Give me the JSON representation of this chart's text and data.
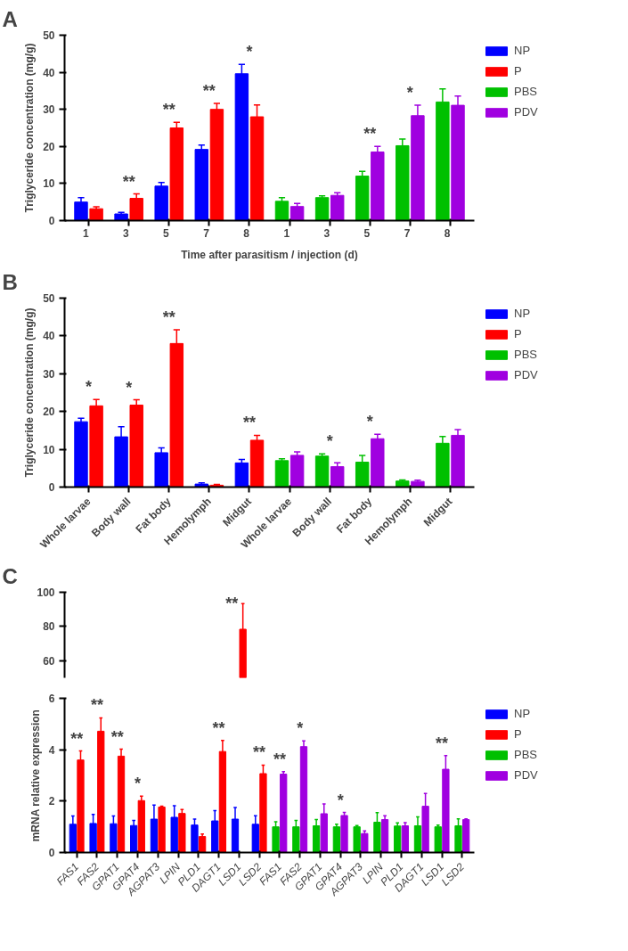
{
  "chart_data": [
    {
      "type": "bar",
      "title": "A",
      "xlabel": "Time after parasitism / injection (d)",
      "ylabel": "Triglyceride concentration (mg/g)",
      "categories": [
        "1",
        "3",
        "5",
        "7",
        "8",
        "1",
        "3",
        "5",
        "7",
        "8"
      ],
      "series": [
        {
          "name": "NP",
          "color": "#0000ff",
          "values": [
            5.0,
            1.8,
            9.3,
            19.2,
            39.6,
            null,
            null,
            null,
            null,
            null
          ],
          "errors": [
            1.2,
            0.4,
            1.0,
            1.2,
            2.5,
            null,
            null,
            null,
            null,
            null
          ]
        },
        {
          "name": "P",
          "color": "#ff0000",
          "values": [
            3.2,
            6.0,
            25.0,
            30.0,
            28.0,
            null,
            null,
            null,
            null,
            null
          ],
          "errors": [
            0.5,
            1.2,
            1.5,
            1.6,
            3.2,
            null,
            null,
            null,
            null,
            null
          ]
        },
        {
          "name": "PBS",
          "color": "#00c000",
          "values": [
            null,
            null,
            null,
            null,
            null,
            5.2,
            6.2,
            12.0,
            20.2,
            32.0
          ],
          "errors": [
            null,
            null,
            null,
            null,
            null,
            1.0,
            0.5,
            1.3,
            1.8,
            3.5
          ]
        },
        {
          "name": "PDV",
          "color": "#a000e0",
          "values": [
            null,
            null,
            null,
            null,
            null,
            3.8,
            6.8,
            18.5,
            28.3,
            31.1
          ],
          "errors": [
            null,
            null,
            null,
            null,
            null,
            0.8,
            0.7,
            1.5,
            2.8,
            2.5
          ]
        }
      ],
      "ylim": [
        0,
        50
      ],
      "yticks": [
        0,
        10,
        20,
        30,
        40,
        50
      ],
      "legend": "right",
      "annotations": [
        "**",
        "**",
        "**",
        "*",
        "**",
        "*"
      ]
    },
    {
      "type": "bar",
      "title": "B",
      "ylabel": "Triglyceride concentration (mg/g)",
      "categories": [
        "Whole larvae",
        "Body wall",
        "Fat body",
        "Hemolymph",
        "Midgut",
        "Whole larvae",
        "Body wall",
        "Fat body",
        "Hemolymph",
        "Midgut"
      ],
      "series": [
        {
          "name": "NP",
          "color": "#0000ff",
          "values": [
            17.3,
            13.3,
            9.1,
            0.8,
            6.4,
            null,
            null,
            null,
            null,
            null
          ],
          "errors": [
            0.9,
            2.7,
            1.3,
            0.3,
            0.9,
            null,
            null,
            null,
            null,
            null
          ]
        },
        {
          "name": "P",
          "color": "#ff0000",
          "values": [
            21.5,
            21.7,
            38.0,
            0.5,
            12.4,
            null,
            null,
            null,
            null,
            null
          ],
          "errors": [
            1.7,
            1.4,
            3.6,
            0.2,
            1.3,
            null,
            null,
            null,
            null,
            null
          ]
        },
        {
          "name": "PBS",
          "color": "#00c000",
          "values": [
            null,
            null,
            null,
            null,
            null,
            7.0,
            8.2,
            6.6,
            1.6,
            11.6
          ],
          "errors": [
            null,
            null,
            null,
            null,
            null,
            0.5,
            0.6,
            1.8,
            0.3,
            1.8
          ]
        },
        {
          "name": "PDV",
          "color": "#a000e0",
          "values": [
            null,
            null,
            null,
            null,
            null,
            8.4,
            5.4,
            12.8,
            1.5,
            13.7
          ],
          "errors": [
            null,
            null,
            null,
            null,
            null,
            0.9,
            1.0,
            1.2,
            0.3,
            1.5
          ]
        }
      ],
      "ylim": [
        0,
        50
      ],
      "yticks": [
        0,
        10,
        20,
        30,
        40,
        50
      ],
      "legend": "right",
      "annotations": [
        "*",
        "*",
        "**",
        "**",
        "*",
        "*"
      ]
    },
    {
      "type": "bar",
      "title": "C",
      "categories": [
        "FAS1",
        "FAS2",
        "GPAT1",
        "GPAT4",
        "AGPAT3",
        "LPIN",
        "PLD1",
        "DAGT1",
        "LSD1",
        "LSD2",
        "FAS1",
        "FAS2",
        "GPAT1",
        "GPAT4",
        "AGPAT3",
        "LPIN",
        "PLD1",
        "DAGT1",
        "LSD1",
        "LSD2"
      ],
      "series": [
        {
          "color": "#ff0000",
          "values": [
            null,
            null,
            null,
            null,
            null,
            null,
            null,
            null,
            78.4,
            null,
            null,
            null,
            null,
            null,
            null,
            null,
            null,
            null,
            null,
            null
          ],
          "errors": [
            null,
            null,
            null,
            null,
            null,
            null,
            null,
            null,
            15,
            null,
            null,
            null,
            null,
            null,
            null,
            null,
            null,
            null,
            null,
            null
          ]
        }
      ],
      "ylim": [
        50,
        100
      ],
      "yticks": [
        60,
        80,
        100
      ],
      "tick_labels": "y",
      "annotations": [
        "**"
      ]
    },
    {
      "type": "bar",
      "ylabel": "mRNA relative expression",
      "categories": [
        "FAS1",
        "FAS2",
        "GPAT1",
        "GPAT4",
        "AGPAT3",
        "LPIN",
        "PLD1",
        "DAGT1",
        "LSD1",
        "LSD2",
        "FAS1",
        "FAS2",
        "GPAT1",
        "GPAT4",
        "AGPAT3",
        "LPIN",
        "PLD1",
        "DAGT1",
        "LSD1",
        "LSD2"
      ],
      "series": [
        {
          "name": "NP",
          "color": "#0000ff",
          "values": [
            1.1,
            1.13,
            1.12,
            1.05,
            1.3,
            1.37,
            1.07,
            1.23,
            1.3,
            1.1,
            null,
            null,
            null,
            null,
            null,
            null,
            null,
            null,
            null,
            null
          ],
          "errors": [
            0.32,
            0.35,
            0.3,
            0.2,
            0.55,
            0.45,
            0.23,
            0.4,
            0.45,
            0.33,
            null,
            null,
            null,
            null,
            null,
            null,
            null,
            null,
            null,
            null
          ]
        },
        {
          "name": "P",
          "color": "#ff0000",
          "values": [
            3.6,
            4.72,
            3.75,
            2.02,
            1.77,
            1.52,
            0.62,
            3.93,
            null,
            3.07,
            null,
            null,
            null,
            null,
            null,
            null,
            null,
            null,
            null,
            null
          ],
          "errors": [
            0.35,
            0.52,
            0.27,
            0.17,
            0.03,
            0.15,
            0.1,
            0.43,
            null,
            0.33,
            null,
            null,
            null,
            null,
            null,
            null,
            null,
            null,
            null,
            null
          ]
        },
        {
          "name": "PBS",
          "color": "#00c000",
          "values": [
            null,
            null,
            null,
            null,
            null,
            null,
            null,
            null,
            null,
            null,
            1.0,
            1.0,
            1.04,
            1.0,
            1.0,
            1.18,
            1.03,
            1.04,
            1.0,
            1.04
          ],
          "errors": [
            null,
            null,
            null,
            null,
            null,
            null,
            null,
            null,
            null,
            null,
            0.2,
            0.25,
            0.24,
            0.1,
            0.05,
            0.37,
            0.12,
            0.35,
            0.07,
            0.27
          ]
        },
        {
          "name": "PDV",
          "color": "#a000e0",
          "values": [
            null,
            null,
            null,
            null,
            null,
            null,
            null,
            null,
            null,
            null,
            3.05,
            4.12,
            1.51,
            1.44,
            0.74,
            1.28,
            1.04,
            1.8,
            3.24,
            1.28
          ],
          "errors": [
            null,
            null,
            null,
            null,
            null,
            null,
            null,
            null,
            null,
            null,
            0.1,
            0.22,
            0.38,
            0.12,
            0.1,
            0.15,
            0.12,
            0.5,
            0.53,
            0.03
          ]
        }
      ],
      "ylim": [
        0,
        6
      ],
      "yticks": [
        0,
        2,
        4,
        6
      ],
      "legend": "right",
      "annotations": [
        "**",
        "**",
        "**",
        "*",
        "**",
        "**",
        "**",
        "*",
        "*",
        "**"
      ]
    }
  ]
}
